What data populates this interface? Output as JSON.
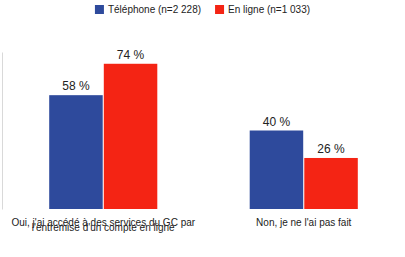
{
  "chart_data": {
    "type": "bar",
    "categories": [
      "Oui, j'ai accédé à des services du GC par l'entremise d'un compte en ligne",
      "Non, je ne l'ai pas fait"
    ],
    "series": [
      {
        "name": "Téléphone (n=2 228)",
        "color": "#2e4a9c",
        "values": [
          58,
          40
        ],
        "value_labels": [
          "58 %",
          "40 %"
        ]
      },
      {
        "name": "En ligne (n=1 033)",
        "color": "#f42414",
        "values": [
          74,
          26
        ],
        "value_labels": [
          "74 %",
          "26 %"
        ]
      }
    ],
    "ylim": [
      0,
      80
    ],
    "yticks": [],
    "data_labels": true,
    "tick_labels": "x",
    "legend": "top"
  }
}
